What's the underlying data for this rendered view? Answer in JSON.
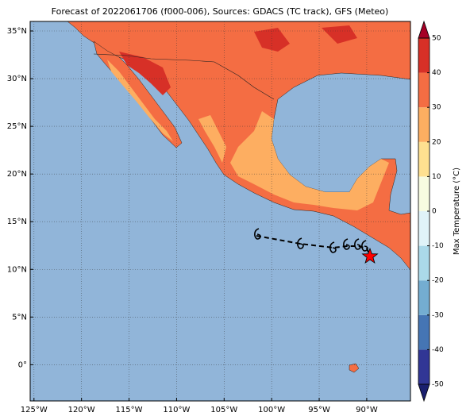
{
  "map": {
    "title": "Forecast of 2022061706 (f000-006), Sources: GDACS (TC track), GFS (Meteo)",
    "lon_range": [
      -125.4,
      -85.4
    ],
    "lat_range": [
      -3.8,
      36
    ],
    "lon_ticks": [
      {
        "value": -125,
        "label": "125°W"
      },
      {
        "value": -120,
        "label": "120°W"
      },
      {
        "value": -115,
        "label": "115°W"
      },
      {
        "value": -110,
        "label": "110°W"
      },
      {
        "value": -105,
        "label": "105°W"
      },
      {
        "value": -100,
        "label": "100°W"
      },
      {
        "value": -95,
        "label": "95°W"
      },
      {
        "value": -90,
        "label": "90°W"
      }
    ],
    "lat_ticks": [
      {
        "value": 0,
        "label": "0°"
      },
      {
        "value": 5,
        "label": "5°N"
      },
      {
        "value": 10,
        "label": "10°N"
      },
      {
        "value": 15,
        "label": "15°N"
      },
      {
        "value": 20,
        "label": "20°N"
      },
      {
        "value": 25,
        "label": "25°N"
      },
      {
        "value": 30,
        "label": "30°N"
      },
      {
        "value": 35,
        "label": "35°N"
      }
    ],
    "grid": true,
    "colorbar": {
      "label": "Max Temperature (°C)",
      "ticks": [
        -50,
        -40,
        -30,
        -20,
        -10,
        0,
        10,
        20,
        30,
        40,
        50
      ],
      "colors": [
        "#313695",
        "#4575b4",
        "#74add1",
        "#abd9e9",
        "#e0f3f8",
        "#f7fbe0",
        "#fee090",
        "#fdae61",
        "#f46d43",
        "#d73027"
      ],
      "under_color": "#1a1f6e",
      "over_color": "#a50026"
    }
  }
}
